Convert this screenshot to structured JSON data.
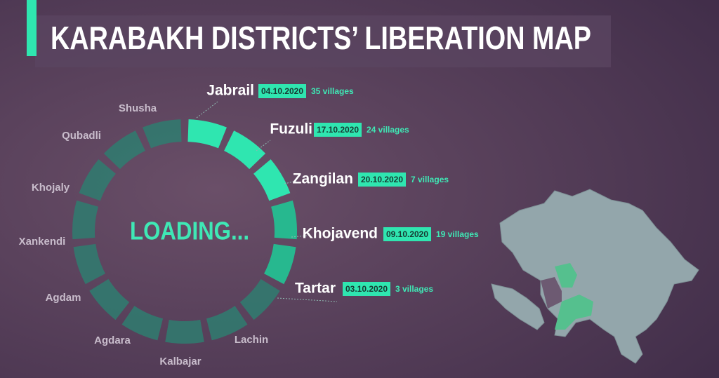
{
  "title": "KARABAKH DISTRICTS’ LIBERATION MAP",
  "loading": "LOADING...",
  "liberated": [
    {
      "name": "Jabrail",
      "date": "04.10.2020",
      "villages": "35 villages"
    },
    {
      "name": "Fuzuli",
      "date": "17.10.2020",
      "villages": "24 villages"
    },
    {
      "name": "Zangilan",
      "date": "20.10.2020",
      "villages": "7 villages"
    },
    {
      "name": "Khojavend",
      "date": "09.10.2020",
      "villages": "19 villages"
    },
    {
      "name": "Tartar",
      "date": "03.10.2020",
      "villages": "3 villages"
    }
  ],
  "remaining": [
    "Shusha",
    "Qubadli",
    "Khojaly",
    "Xankendi",
    "Agdam",
    "Agdara",
    "Kalbajar",
    "Lachin"
  ]
}
